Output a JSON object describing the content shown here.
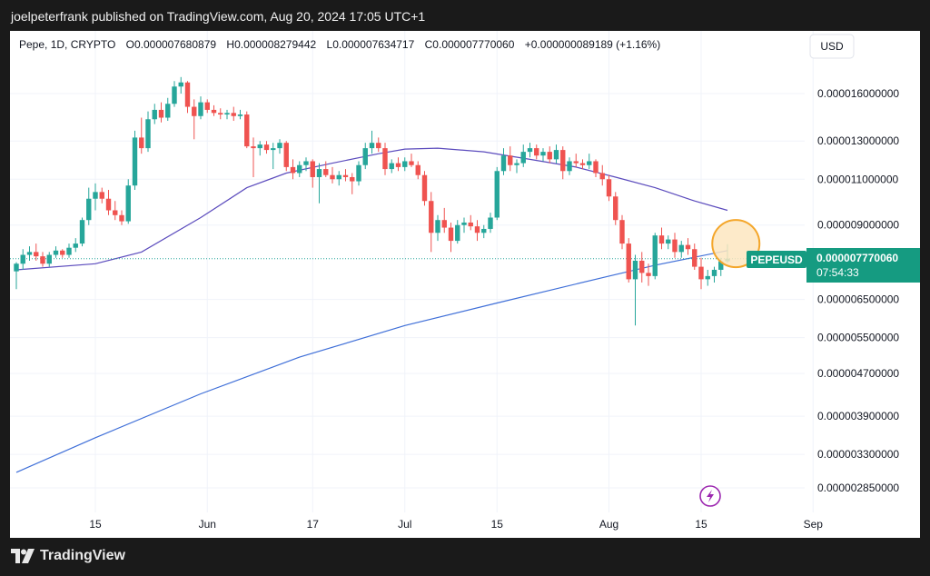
{
  "header": {
    "published": "joelpeterfrank published on TradingView.com, Aug 20, 2024 17:05 UTC+1"
  },
  "legend": {
    "symbol": "Pepe, 1D, CRYPTO",
    "open": "O0.000007680879",
    "high": "H0.000008279442",
    "low": "L0.000007634717",
    "close": "C0.000007770060",
    "change": "+0.000000089189 (+1.16%)"
  },
  "currency": "USD",
  "price_badge": {
    "symbol": "PEPEUSD",
    "price": "0.000007770060",
    "countdown": "07:54:33"
  },
  "footer": {
    "brand": "TradingView"
  },
  "colors": {
    "up": "#26a69a",
    "down": "#ef5350",
    "ma_short": "#5b4bbd",
    "ma_long": "#3f6fd8",
    "highlight_fill": "#fde6bf",
    "highlight_stroke": "#f4a62a",
    "badge": "#159b81"
  },
  "chart_data": {
    "type": "candlestick",
    "scale": "log",
    "y_ticks": [
      {
        "label": "0.000016000000",
        "value": 1.6e-05
      },
      {
        "label": "0.000013000000",
        "value": 1.3e-05
      },
      {
        "label": "0.000011000000",
        "value": 1.1e-05
      },
      {
        "label": "0.000009000000",
        "value": 9e-06
      },
      {
        "label": "0.000006500000",
        "value": 6.5e-06
      },
      {
        "label": "0.000005500000",
        "value": 5.5e-06
      },
      {
        "label": "0.000004700000",
        "value": 4.7e-06
      },
      {
        "label": "0.000003900000",
        "value": 3.9e-06
      },
      {
        "label": "0.000003300000",
        "value": 3.3e-06
      },
      {
        "label": "0.000002850000",
        "value": 2.85e-06
      }
    ],
    "x_ticks": [
      {
        "label": "15",
        "date": "2024-05-15"
      },
      {
        "label": "Jun",
        "date": "2024-06-01"
      },
      {
        "label": "17",
        "date": "2024-06-17"
      },
      {
        "label": "Jul",
        "date": "2024-07-01"
      },
      {
        "label": "15",
        "date": "2024-07-15"
      },
      {
        "label": "Aug",
        "date": "2024-08-01"
      },
      {
        "label": "15",
        "date": "2024-08-15"
      },
      {
        "label": "Sep",
        "date": "2024-09-01"
      }
    ],
    "candles": [
      {
        "d": "2024-05-03",
        "o": 7.35,
        "h": 7.65,
        "l": 6.8,
        "c": 7.6
      },
      {
        "d": "2024-05-04",
        "o": 7.6,
        "h": 8.1,
        "l": 7.4,
        "c": 7.9
      },
      {
        "d": "2024-05-05",
        "o": 7.9,
        "h": 8.2,
        "l": 7.7,
        "c": 8.0
      },
      {
        "d": "2024-05-06",
        "o": 8.0,
        "h": 8.3,
        "l": 7.7,
        "c": 7.85
      },
      {
        "d": "2024-05-07",
        "o": 7.85,
        "h": 8.0,
        "l": 7.5,
        "c": 7.6
      },
      {
        "d": "2024-05-08",
        "o": 7.6,
        "h": 8.0,
        "l": 7.5,
        "c": 7.9
      },
      {
        "d": "2024-05-09",
        "o": 7.9,
        "h": 8.2,
        "l": 7.8,
        "c": 8.05
      },
      {
        "d": "2024-05-10",
        "o": 8.05,
        "h": 8.1,
        "l": 7.8,
        "c": 7.9
      },
      {
        "d": "2024-05-11",
        "o": 7.9,
        "h": 8.3,
        "l": 7.8,
        "c": 8.15
      },
      {
        "d": "2024-05-12",
        "o": 8.15,
        "h": 8.5,
        "l": 8.0,
        "c": 8.3
      },
      {
        "d": "2024-05-13",
        "o": 8.3,
        "h": 9.3,
        "l": 8.2,
        "c": 9.2
      },
      {
        "d": "2024-05-14",
        "o": 9.2,
        "h": 10.6,
        "l": 9.0,
        "c": 10.1
      },
      {
        "d": "2024-05-15",
        "o": 10.1,
        "h": 10.8,
        "l": 9.6,
        "c": 10.4
      },
      {
        "d": "2024-05-16",
        "o": 10.4,
        "h": 10.6,
        "l": 9.9,
        "c": 10.1
      },
      {
        "d": "2024-05-17",
        "o": 10.1,
        "h": 10.5,
        "l": 9.4,
        "c": 9.6
      },
      {
        "d": "2024-05-18",
        "o": 9.6,
        "h": 10.0,
        "l": 9.2,
        "c": 9.4
      },
      {
        "d": "2024-05-19",
        "o": 9.4,
        "h": 9.6,
        "l": 9.0,
        "c": 9.15
      },
      {
        "d": "2024-05-20",
        "o": 9.15,
        "h": 11.0,
        "l": 9.05,
        "c": 10.7
      },
      {
        "d": "2024-05-21",
        "o": 10.7,
        "h": 13.6,
        "l": 10.5,
        "c": 13.2
      },
      {
        "d": "2024-05-22",
        "o": 13.2,
        "h": 14.4,
        "l": 12.3,
        "c": 12.6
      },
      {
        "d": "2024-05-23",
        "o": 12.6,
        "h": 14.8,
        "l": 12.4,
        "c": 14.3
      },
      {
        "d": "2024-05-24",
        "o": 14.3,
        "h": 15.3,
        "l": 14.0,
        "c": 14.9
      },
      {
        "d": "2024-05-25",
        "o": 14.9,
        "h": 15.4,
        "l": 14.1,
        "c": 14.4
      },
      {
        "d": "2024-05-26",
        "o": 14.4,
        "h": 15.7,
        "l": 14.2,
        "c": 15.3
      },
      {
        "d": "2024-05-27",
        "o": 15.3,
        "h": 16.9,
        "l": 15.1,
        "c": 16.5
      },
      {
        "d": "2024-05-28",
        "o": 16.5,
        "h": 17.2,
        "l": 16.0,
        "c": 16.8
      },
      {
        "d": "2024-05-29",
        "o": 16.8,
        "h": 16.9,
        "l": 14.7,
        "c": 15.1
      },
      {
        "d": "2024-05-30",
        "o": 15.1,
        "h": 15.6,
        "l": 13.1,
        "c": 14.5
      },
      {
        "d": "2024-05-31",
        "o": 14.5,
        "h": 15.8,
        "l": 14.3,
        "c": 15.4
      },
      {
        "d": "2024-06-01",
        "o": 15.4,
        "h": 15.6,
        "l": 14.7,
        "c": 14.9
      },
      {
        "d": "2024-06-02",
        "o": 14.9,
        "h": 15.2,
        "l": 14.5,
        "c": 14.7
      },
      {
        "d": "2024-06-03",
        "o": 14.7,
        "h": 15.0,
        "l": 14.3,
        "c": 14.6
      },
      {
        "d": "2024-06-04",
        "o": 14.6,
        "h": 14.9,
        "l": 14.3,
        "c": 14.7
      },
      {
        "d": "2024-06-05",
        "o": 14.7,
        "h": 15.1,
        "l": 14.2,
        "c": 14.5
      },
      {
        "d": "2024-06-06",
        "o": 14.5,
        "h": 14.9,
        "l": 14.3,
        "c": 14.6
      },
      {
        "d": "2024-06-07",
        "o": 14.6,
        "h": 14.8,
        "l": 12.6,
        "c": 12.7
      },
      {
        "d": "2024-06-08",
        "o": 12.7,
        "h": 13.2,
        "l": 11.1,
        "c": 12.6
      },
      {
        "d": "2024-06-09",
        "o": 12.6,
        "h": 13.0,
        "l": 12.2,
        "c": 12.8
      },
      {
        "d": "2024-06-10",
        "o": 12.8,
        "h": 13.0,
        "l": 12.3,
        "c": 12.5
      },
      {
        "d": "2024-06-11",
        "o": 12.5,
        "h": 12.9,
        "l": 11.5,
        "c": 12.6
      },
      {
        "d": "2024-06-12",
        "o": 12.6,
        "h": 13.1,
        "l": 12.3,
        "c": 12.9
      },
      {
        "d": "2024-06-13",
        "o": 12.9,
        "h": 13.0,
        "l": 11.4,
        "c": 11.6
      },
      {
        "d": "2024-06-14",
        "o": 11.6,
        "h": 12.0,
        "l": 11.0,
        "c": 11.3
      },
      {
        "d": "2024-06-15",
        "o": 11.3,
        "h": 11.9,
        "l": 11.1,
        "c": 11.7
      },
      {
        "d": "2024-06-16",
        "o": 11.7,
        "h": 12.1,
        "l": 11.4,
        "c": 11.9
      },
      {
        "d": "2024-06-17",
        "o": 11.9,
        "h": 12.0,
        "l": 10.6,
        "c": 11.1
      },
      {
        "d": "2024-06-18",
        "o": 11.1,
        "h": 11.8,
        "l": 9.9,
        "c": 11.5
      },
      {
        "d": "2024-06-19",
        "o": 11.5,
        "h": 11.9,
        "l": 11.1,
        "c": 11.2
      },
      {
        "d": "2024-06-20",
        "o": 11.2,
        "h": 11.6,
        "l": 10.8,
        "c": 11.0
      },
      {
        "d": "2024-06-21",
        "o": 11.0,
        "h": 11.4,
        "l": 10.7,
        "c": 11.2
      },
      {
        "d": "2024-06-22",
        "o": 11.2,
        "h": 11.5,
        "l": 10.9,
        "c": 11.1
      },
      {
        "d": "2024-06-23",
        "o": 11.1,
        "h": 11.3,
        "l": 10.3,
        "c": 10.9
      },
      {
        "d": "2024-06-24",
        "o": 10.9,
        "h": 11.9,
        "l": 10.7,
        "c": 11.7
      },
      {
        "d": "2024-06-25",
        "o": 11.7,
        "h": 12.9,
        "l": 11.5,
        "c": 12.6
      },
      {
        "d": "2024-06-26",
        "o": 12.6,
        "h": 13.6,
        "l": 12.3,
        "c": 12.9
      },
      {
        "d": "2024-06-27",
        "o": 12.9,
        "h": 13.2,
        "l": 12.4,
        "c": 12.6
      },
      {
        "d": "2024-06-28",
        "o": 12.6,
        "h": 12.9,
        "l": 11.2,
        "c": 11.5
      },
      {
        "d": "2024-06-29",
        "o": 11.5,
        "h": 12.0,
        "l": 11.3,
        "c": 11.8
      },
      {
        "d": "2024-06-30",
        "o": 11.8,
        "h": 12.1,
        "l": 11.4,
        "c": 11.6
      },
      {
        "d": "2024-07-01",
        "o": 11.6,
        "h": 12.1,
        "l": 11.4,
        "c": 11.9
      },
      {
        "d": "2024-07-02",
        "o": 11.9,
        "h": 12.3,
        "l": 11.6,
        "c": 11.7
      },
      {
        "d": "2024-07-03",
        "o": 11.7,
        "h": 11.9,
        "l": 11.0,
        "c": 11.2
      },
      {
        "d": "2024-07-04",
        "o": 11.2,
        "h": 11.4,
        "l": 9.8,
        "c": 10.0
      },
      {
        "d": "2024-07-05",
        "o": 10.0,
        "h": 10.4,
        "l": 8.0,
        "c": 8.7
      },
      {
        "d": "2024-07-06",
        "o": 8.7,
        "h": 9.4,
        "l": 8.4,
        "c": 9.2
      },
      {
        "d": "2024-07-07",
        "o": 9.2,
        "h": 9.7,
        "l": 8.7,
        "c": 8.9
      },
      {
        "d": "2024-07-08",
        "o": 8.9,
        "h": 9.1,
        "l": 8.0,
        "c": 8.4
      },
      {
        "d": "2024-07-09",
        "o": 8.4,
        "h": 9.2,
        "l": 8.3,
        "c": 9.0
      },
      {
        "d": "2024-07-10",
        "o": 9.0,
        "h": 9.3,
        "l": 8.7,
        "c": 9.1
      },
      {
        "d": "2024-07-11",
        "o": 9.1,
        "h": 9.4,
        "l": 8.8,
        "c": 8.95
      },
      {
        "d": "2024-07-12",
        "o": 8.95,
        "h": 9.2,
        "l": 8.4,
        "c": 8.7
      },
      {
        "d": "2024-07-13",
        "o": 8.7,
        "h": 9.0,
        "l": 8.5,
        "c": 8.85
      },
      {
        "d": "2024-07-14",
        "o": 8.85,
        "h": 9.5,
        "l": 8.7,
        "c": 9.3
      },
      {
        "d": "2024-07-15",
        "o": 9.3,
        "h": 11.6,
        "l": 9.2,
        "c": 11.4
      },
      {
        "d": "2024-07-16",
        "o": 11.4,
        "h": 12.6,
        "l": 11.2,
        "c": 12.2
      },
      {
        "d": "2024-07-17",
        "o": 12.2,
        "h": 12.7,
        "l": 11.4,
        "c": 11.7
      },
      {
        "d": "2024-07-18",
        "o": 11.7,
        "h": 12.0,
        "l": 11.3,
        "c": 11.8
      },
      {
        "d": "2024-07-19",
        "o": 11.8,
        "h": 12.8,
        "l": 11.6,
        "c": 12.4
      },
      {
        "d": "2024-07-20",
        "o": 12.4,
        "h": 12.9,
        "l": 12.1,
        "c": 12.6
      },
      {
        "d": "2024-07-21",
        "o": 12.6,
        "h": 12.8,
        "l": 12.0,
        "c": 12.2
      },
      {
        "d": "2024-07-22",
        "o": 12.2,
        "h": 12.6,
        "l": 11.9,
        "c": 12.4
      },
      {
        "d": "2024-07-23",
        "o": 12.4,
        "h": 12.7,
        "l": 11.8,
        "c": 12.0
      },
      {
        "d": "2024-07-24",
        "o": 12.0,
        "h": 12.8,
        "l": 11.8,
        "c": 12.5
      },
      {
        "d": "2024-07-25",
        "o": 12.5,
        "h": 12.7,
        "l": 11.0,
        "c": 11.4
      },
      {
        "d": "2024-07-26",
        "o": 11.4,
        "h": 12.1,
        "l": 11.2,
        "c": 11.9
      },
      {
        "d": "2024-07-27",
        "o": 11.9,
        "h": 12.3,
        "l": 11.6,
        "c": 11.8
      },
      {
        "d": "2024-07-28",
        "o": 11.8,
        "h": 12.0,
        "l": 11.5,
        "c": 11.7
      },
      {
        "d": "2024-07-29",
        "o": 11.7,
        "h": 12.3,
        "l": 11.5,
        "c": 11.9
      },
      {
        "d": "2024-07-30",
        "o": 11.9,
        "h": 12.0,
        "l": 11.1,
        "c": 11.3
      },
      {
        "d": "2024-07-31",
        "o": 11.3,
        "h": 11.7,
        "l": 10.7,
        "c": 11.0
      },
      {
        "d": "2024-08-01",
        "o": 11.0,
        "h": 11.2,
        "l": 10.0,
        "c": 10.2
      },
      {
        "d": "2024-08-02",
        "o": 10.2,
        "h": 10.4,
        "l": 9.0,
        "c": 9.2
      },
      {
        "d": "2024-08-03",
        "o": 9.2,
        "h": 9.4,
        "l": 8.1,
        "c": 8.3
      },
      {
        "d": "2024-08-04",
        "o": 8.3,
        "h": 8.5,
        "l": 7.0,
        "c": 7.1
      },
      {
        "d": "2024-08-05",
        "o": 7.1,
        "h": 7.9,
        "l": 5.8,
        "c": 7.7
      },
      {
        "d": "2024-08-06",
        "o": 7.7,
        "h": 8.0,
        "l": 7.0,
        "c": 7.3
      },
      {
        "d": "2024-08-07",
        "o": 7.3,
        "h": 7.6,
        "l": 6.9,
        "c": 7.2
      },
      {
        "d": "2024-08-08",
        "o": 7.2,
        "h": 8.7,
        "l": 7.1,
        "c": 8.6
      },
      {
        "d": "2024-08-09",
        "o": 8.6,
        "h": 8.9,
        "l": 8.1,
        "c": 8.3
      },
      {
        "d": "2024-08-10",
        "o": 8.3,
        "h": 8.6,
        "l": 8.1,
        "c": 8.45
      },
      {
        "d": "2024-08-11",
        "o": 8.45,
        "h": 8.7,
        "l": 7.8,
        "c": 8.0
      },
      {
        "d": "2024-08-12",
        "o": 8.0,
        "h": 8.4,
        "l": 7.8,
        "c": 8.25
      },
      {
        "d": "2024-08-13",
        "o": 8.25,
        "h": 8.5,
        "l": 7.9,
        "c": 8.1
      },
      {
        "d": "2024-08-14",
        "o": 8.1,
        "h": 8.3,
        "l": 7.4,
        "c": 7.5
      },
      {
        "d": "2024-08-15",
        "o": 7.5,
        "h": 7.8,
        "l": 6.8,
        "c": 7.1
      },
      {
        "d": "2024-08-16",
        "o": 7.1,
        "h": 7.4,
        "l": 6.9,
        "c": 7.2
      },
      {
        "d": "2024-08-17",
        "o": 7.2,
        "h": 7.5,
        "l": 7.0,
        "c": 7.4
      },
      {
        "d": "2024-08-18",
        "o": 7.4,
        "h": 7.8,
        "l": 7.2,
        "c": 7.68
      },
      {
        "d": "2024-08-19",
        "o": 7.68,
        "h": 8.28,
        "l": 7.63,
        "c": 7.77
      }
    ],
    "ma_short": [
      {
        "d": "2024-05-03",
        "v": 7.4
      },
      {
        "d": "2024-05-15",
        "v": 7.6
      },
      {
        "d": "2024-05-22",
        "v": 8.0
      },
      {
        "d": "2024-05-31",
        "v": 9.3
      },
      {
        "d": "2024-06-07",
        "v": 10.6
      },
      {
        "d": "2024-06-13",
        "v": 11.3
      },
      {
        "d": "2024-06-20",
        "v": 11.8
      },
      {
        "d": "2024-06-27",
        "v": 12.3
      },
      {
        "d": "2024-07-01",
        "v": 12.55
      },
      {
        "d": "2024-07-06",
        "v": 12.6
      },
      {
        "d": "2024-07-13",
        "v": 12.4
      },
      {
        "d": "2024-07-20",
        "v": 12.0
      },
      {
        "d": "2024-07-27",
        "v": 11.6
      },
      {
        "d": "2024-08-02",
        "v": 11.1
      },
      {
        "d": "2024-08-08",
        "v": 10.6
      },
      {
        "d": "2024-08-14",
        "v": 10.0
      },
      {
        "d": "2024-08-19",
        "v": 9.6
      }
    ],
    "ma_long": [
      {
        "d": "2024-05-03",
        "v": 3.05
      },
      {
        "d": "2024-05-15",
        "v": 3.55
      },
      {
        "d": "2024-05-31",
        "v": 4.3
      },
      {
        "d": "2024-06-15",
        "v": 5.05
      },
      {
        "d": "2024-07-01",
        "v": 5.8
      },
      {
        "d": "2024-07-15",
        "v": 6.4
      },
      {
        "d": "2024-08-01",
        "v": 7.2
      },
      {
        "d": "2024-08-08",
        "v": 7.55
      },
      {
        "d": "2024-08-19",
        "v": 8.05
      }
    ],
    "y_unit_multiplier": 1e-06
  }
}
